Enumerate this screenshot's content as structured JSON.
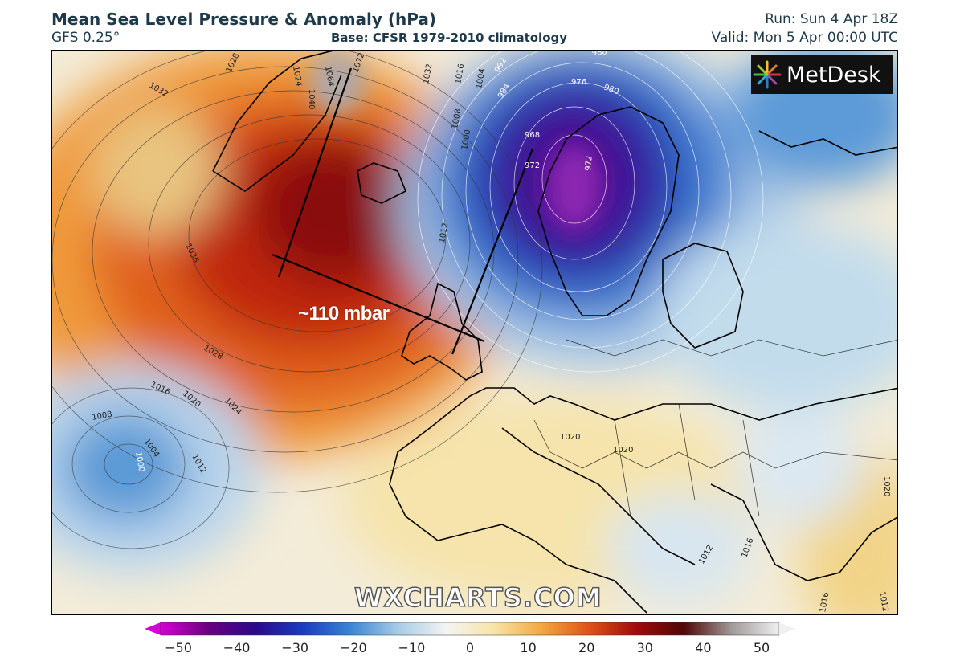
{
  "header": {
    "title": "Mean Sea Level Pressure & Anomaly (hPa)",
    "model": "GFS 0.25°",
    "base": "Base: CFSR 1979-2010 climatology",
    "run": "Run: Sun 4 Apr 18Z",
    "valid": "Valid: Mon 5 Apr 00:00 UTC"
  },
  "logo": {
    "text": "MetDesk",
    "icon": "metdesk-starburst-icon"
  },
  "annotation": {
    "text": "~110 mbar"
  },
  "watermark": {
    "text": "WXCHARTS.COM"
  },
  "isobar_labels": [
    "1028",
    "1024",
    "1032",
    "1040",
    "1064",
    "1072",
    "1032",
    "1016",
    "1004",
    "992",
    "988",
    "984",
    "976",
    "980",
    "968",
    "972",
    "972",
    "1008",
    "1000",
    "1012",
    "1036",
    "1028",
    "1016",
    "1020",
    "1024",
    "1008",
    "1004",
    "1000",
    "1012",
    "1020",
    "1020",
    "1012",
    "1016",
    "1020",
    "1016",
    "1012"
  ],
  "colorbar": {
    "ticks": [
      "−50",
      "−40",
      "−30",
      "−20",
      "−10",
      "0",
      "10",
      "20",
      "30",
      "40",
      "50"
    ],
    "range": [
      -50,
      50
    ],
    "colors": [
      "#d400d4",
      "#6a0080",
      "#2a0a8a",
      "#1a3cc0",
      "#3b86d4",
      "#a8cce6",
      "#f4f4f4",
      "#f8e4a8",
      "#f2a840",
      "#de5418",
      "#a00a0a",
      "#500808",
      "#a09a9a",
      "#f0f0f0"
    ]
  }
}
